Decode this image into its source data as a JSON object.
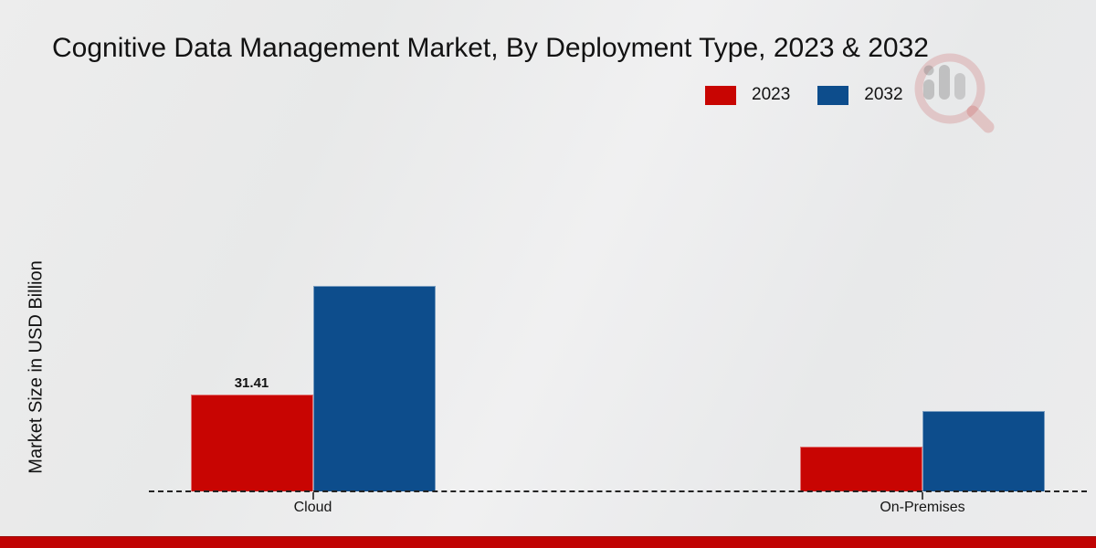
{
  "page": {
    "background": "#ebebeb",
    "footer_bar_color": "#c00303"
  },
  "header": {
    "title": "Cognitive Data Management Market, By Deployment Type, 2023 & 2032"
  },
  "legend": {
    "items": [
      {
        "label": "2023",
        "color": "#c80502"
      },
      {
        "label": "2032",
        "color": "#0d4d8c"
      }
    ]
  },
  "axes": {
    "y_label": "Market Size in USD Billion"
  },
  "watermark": {
    "icon": "magnifier-bar-chart-logo"
  },
  "chart_data": {
    "type": "bar",
    "title": "Cognitive Data Management Market, By Deployment Type, 2023 & 2032",
    "categories": [
      "Cloud",
      "On-Premises"
    ],
    "series": [
      {
        "name": "2023",
        "color": "#c80502",
        "values": [
          31.41,
          14.5
        ],
        "labels": [
          "31.41",
          ""
        ]
      },
      {
        "name": "2032",
        "color": "#0d4d8c",
        "values": [
          66.8,
          26.1
        ],
        "labels": [
          "",
          ""
        ]
      }
    ],
    "xlabel": "",
    "ylabel": "Market Size in USD Billion",
    "ylim": [
      0,
      70
    ],
    "grid": false,
    "baseline_style": "dashed",
    "legend_position": "top-right",
    "data_label_shown_only_for": "Cloud 2023"
  }
}
